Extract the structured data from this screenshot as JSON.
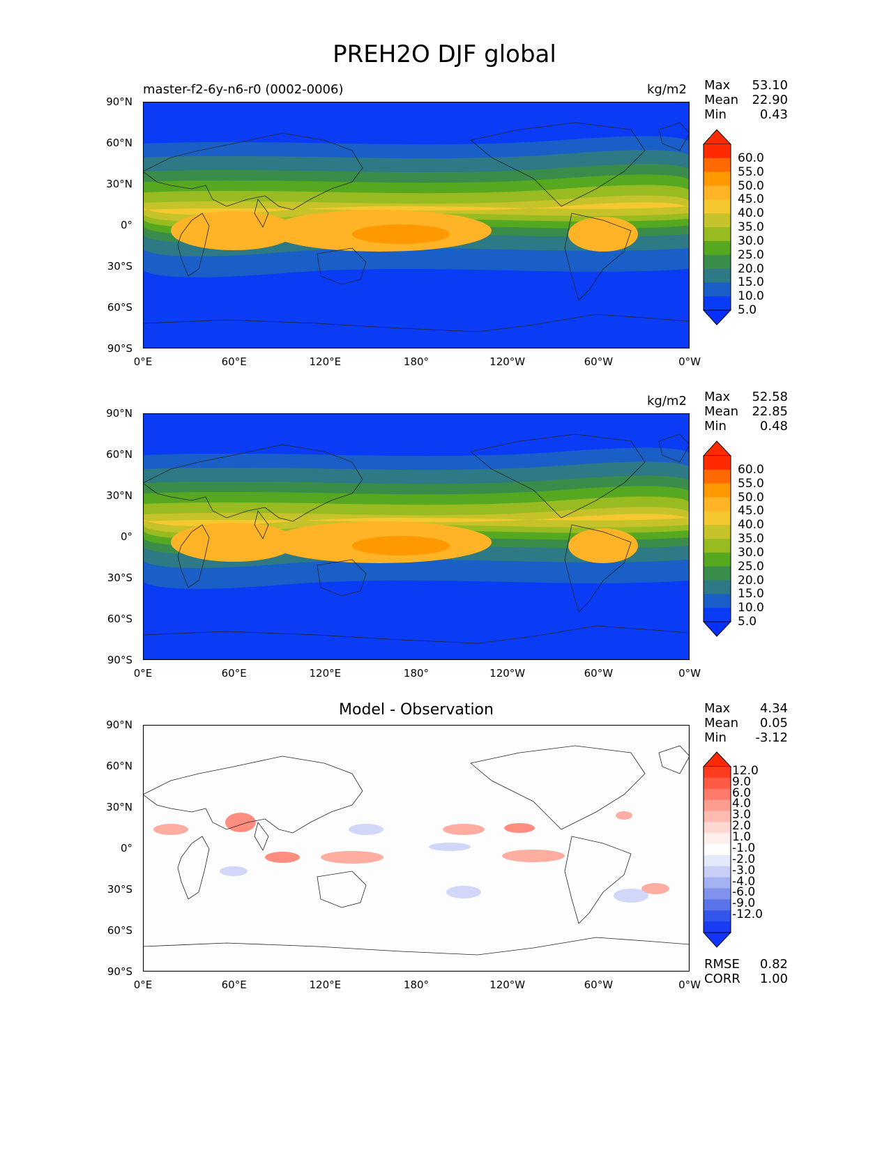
{
  "title": "PREH2O DJF global",
  "x_ticks": [
    "0°E",
    "60°E",
    "120°E",
    "180°",
    "120°W",
    "60°W",
    "0°W"
  ],
  "y_ticks": [
    "90°N",
    "60°N",
    "30°N",
    "0°",
    "30°S",
    "60°S",
    "90°S"
  ],
  "stat_labels": {
    "max": "Max",
    "mean": "Mean",
    "min": "Min",
    "rmse": "RMSE",
    "corr": "CORR"
  },
  "panels": [
    {
      "left_label": "master-f2-6y-n6-r0 (0002-0006)",
      "center_label": "",
      "units": "kg/m2",
      "stats": {
        "max": "53.10",
        "mean": "22.90",
        "min": "0.43"
      }
    },
    {
      "left_label": "",
      "center_label": "",
      "units": "kg/m2",
      "stats": {
        "max": "52.58",
        "mean": "22.85",
        "min": "0.48"
      }
    },
    {
      "left_label": "",
      "center_label": "Model - Observation",
      "units": "",
      "stats": {
        "max": "4.34",
        "mean": "0.05",
        "min": "-3.12"
      },
      "extra_stats": {
        "rmse": "0.82",
        "corr": "1.00"
      }
    }
  ],
  "colorbars": {
    "absolute": {
      "levels": [
        "60.0",
        "55.0",
        "50.0",
        "45.0",
        "40.0",
        "35.0",
        "30.0",
        "25.0",
        "20.0",
        "15.0",
        "10.0",
        "5.0"
      ],
      "colors": [
        "#ff2a00",
        "#ff6a00",
        "#ff9900",
        "#ffb326",
        "#f5c830",
        "#c6c22a",
        "#98bb22",
        "#55a81f",
        "#3a8c4a",
        "#2d7a86",
        "#1a5fc8",
        "#0a3cf5"
      ],
      "over_color": "#ff2a00",
      "under_color": "#0530ff"
    },
    "difference": {
      "levels": [
        "12.0",
        "9.0",
        "6.0",
        "4.0",
        "3.0",
        "2.0",
        "1.0",
        "-1.0",
        "-2.0",
        "-3.0",
        "-4.0",
        "-6.0",
        "-9.0",
        "-12.0"
      ],
      "colors": [
        "#ff3b1f",
        "#ff5a44",
        "#ff7a6a",
        "#ff9d90",
        "#ffbbb2",
        "#ffd8d3",
        "#fff0ee",
        "#ffffff",
        "#e4e8fb",
        "#c8d0f8",
        "#a5b2f2",
        "#8293ee",
        "#5b74ea",
        "#3455ec",
        "#1a3cf5"
      ],
      "over_color": "#ff2a00",
      "under_color": "#1235ff"
    }
  },
  "map_colors": {
    "ocean_polar": "#0a3cf5",
    "high_lat": "#1a5fc8",
    "mid_lat": "#2d7a86",
    "subtrop": "#3a8c4a",
    "trop_edge": "#55a81f",
    "trop_outer": "#98bb22",
    "trop": "#c6c22a",
    "trop_core": "#f5c830",
    "warm_pool": "#ffb326",
    "warm_pool_core": "#ff9900",
    "coast": "#222222",
    "diff_bg": "#fdfdfd",
    "diff_pos": "#ff9d90",
    "diff_pos_strong": "#ff7a6a",
    "diff_neg": "#c8d0f8",
    "diff_neg_strong": "#a5b2f2"
  }
}
